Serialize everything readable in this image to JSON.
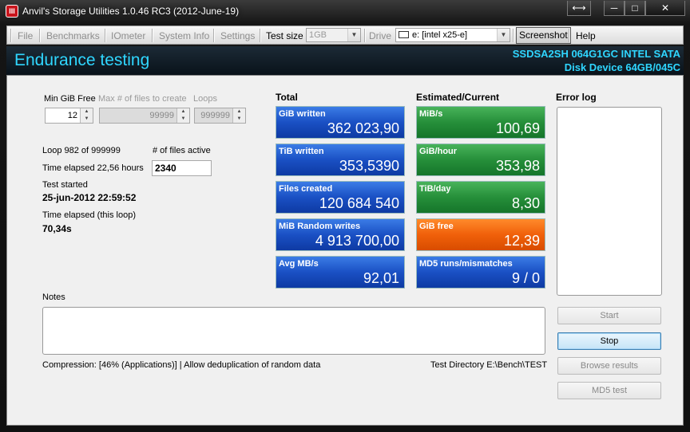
{
  "window": {
    "title": "Anvil's Storage Utilities 1.0.46 RC3 (2012-June-19)",
    "icon_text": "III"
  },
  "caption_buttons": {
    "restore": "⟷",
    "minimize": "─",
    "maximize": "□",
    "close": "✕"
  },
  "menu": {
    "file": "File",
    "benchmarks": "Benchmarks",
    "iometer": "IOmeter",
    "system_info": "System Info",
    "settings": "Settings",
    "test_size_label": "Test size",
    "test_size_value": "1GB",
    "drive_label": "Drive",
    "drive_value": "e: [intel x25-e]",
    "screenshot": "Screenshot",
    "help": "Help"
  },
  "header": {
    "title": "Endurance testing",
    "device_line1": "SSDSA2SH 064G1GC INTEL SATA",
    "device_line2": "Disk Device 64GB/045C"
  },
  "settings": {
    "min_gib_free_label": "Min GiB Free",
    "min_gib_free_value": "12",
    "max_files_label": "Max # of files to create",
    "max_files_value": "99999",
    "loops_label": "Loops",
    "loops_value": "999999"
  },
  "status": {
    "loop_text": "Loop 982 of 999999",
    "files_active_label": "# of files active",
    "files_active_value": "2340",
    "time_elapsed": "Time elapsed 22,56 hours",
    "test_started_label": "Test started",
    "test_started_value": "25-jun-2012 22:59:52",
    "loop_elapsed_label": "Time elapsed (this loop)",
    "loop_elapsed_value": "70,34s"
  },
  "total": {
    "heading": "Total",
    "tiles": [
      {
        "label": "GiB written",
        "value": "362 023,90",
        "color": "#1a50c4"
      },
      {
        "label": "TiB written",
        "value": "353,5390",
        "color": "#1a50c4"
      },
      {
        "label": "Files created",
        "value": "120 684 540",
        "color": "#1a50c4"
      },
      {
        "label": "MiB Random writes",
        "value": "4 913 700,00",
        "color": "#1a50c4"
      },
      {
        "label": "Avg MB/s",
        "value": "92,01",
        "color": "#1a50c4"
      }
    ]
  },
  "estimated": {
    "heading": "Estimated/Current",
    "tiles": [
      {
        "label": "MiB/s",
        "value": "100,69",
        "color": "#268f3a"
      },
      {
        "label": "GiB/hour",
        "value": "353,98",
        "color": "#268f3a"
      },
      {
        "label": "TiB/day",
        "value": "8,30",
        "color": "#268f3a"
      },
      {
        "label": "GiB free",
        "value": "12,39",
        "color": "#f0600a"
      },
      {
        "label": "MD5 runs/mismatches",
        "value": "9 / 0",
        "color": "#1a50c4"
      }
    ]
  },
  "error_log": {
    "heading": "Error log"
  },
  "notes": {
    "label": "Notes",
    "value": ""
  },
  "footer": {
    "compression": "Compression: [46% (Applications)] | Allow deduplication of random data",
    "test_directory": "Test Directory E:\\Bench\\TEST"
  },
  "buttons": {
    "start": "Start",
    "stop": "Stop",
    "browse_results": "Browse results",
    "md5_test": "MD5 test"
  }
}
